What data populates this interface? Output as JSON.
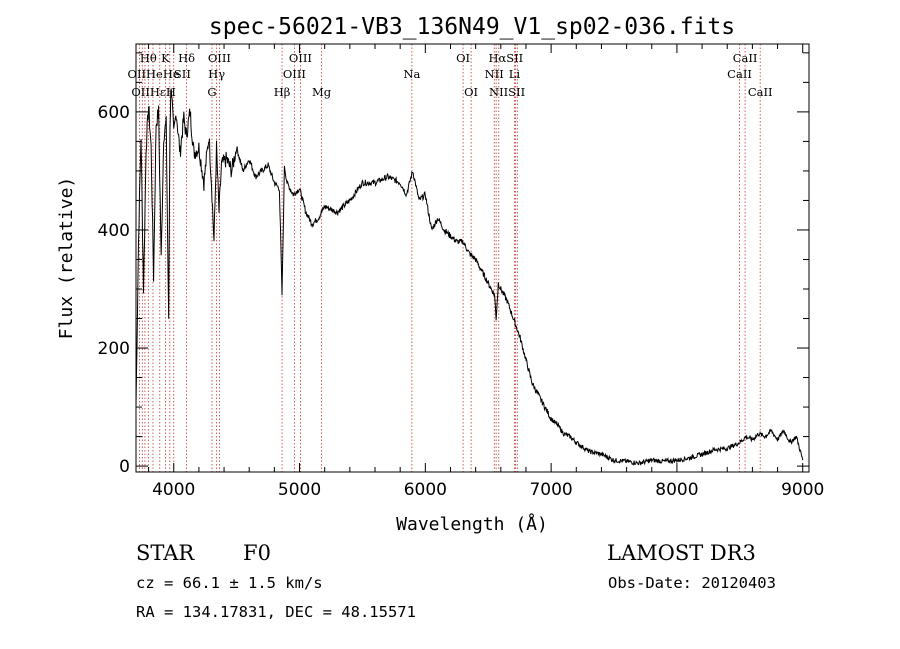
{
  "chart_data": {
    "type": "line",
    "title": "spec-56021-VB3_136N49_V1_sp02-036.fits",
    "xlabel": "Wavelength (Å)",
    "ylabel": "Flux (relative)",
    "xlim": [
      3700,
      9050
    ],
    "ylim": [
      -10,
      715
    ],
    "xticks": [
      4000,
      5000,
      6000,
      7000,
      8000,
      9000
    ],
    "yticks": [
      0,
      200,
      400,
      600
    ],
    "grid": false,
    "series": [
      {
        "name": "flux",
        "x": [
          3700,
          3720,
          3740,
          3760,
          3780,
          3800,
          3820,
          3840,
          3860,
          3880,
          3900,
          3920,
          3940,
          3960,
          3970,
          3980,
          4000,
          4020,
          4050,
          4080,
          4100,
          4130,
          4160,
          4200,
          4240,
          4280,
          4300,
          4320,
          4340,
          4360,
          4380,
          4420,
          4460,
          4500,
          4550,
          4600,
          4650,
          4700,
          4750,
          4800,
          4840,
          4861,
          4880,
          4900,
          4950,
          5000,
          5050,
          5100,
          5150,
          5200,
          5300,
          5400,
          5500,
          5600,
          5700,
          5800,
          5850,
          5900,
          5950,
          6000,
          6050,
          6100,
          6150,
          6200,
          6250,
          6300,
          6350,
          6400,
          6450,
          6500,
          6550,
          6563,
          6580,
          6600,
          6650,
          6700,
          6750,
          6800,
          6850,
          6900,
          6950,
          7000,
          7050,
          7100,
          7150,
          7200,
          7300,
          7400,
          7500,
          7600,
          7700,
          7800,
          7900,
          8000,
          8100,
          8200,
          8300,
          8400,
          8500,
          8550,
          8600,
          8650,
          8700,
          8750,
          8800,
          8850,
          8900,
          8950,
          9000
        ],
        "y": [
          100,
          380,
          560,
          300,
          540,
          610,
          540,
          320,
          580,
          600,
          350,
          560,
          580,
          240,
          580,
          650,
          560,
          600,
          530,
          590,
          560,
          600,
          530,
          540,
          480,
          560,
          480,
          380,
          540,
          430,
          510,
          520,
          500,
          540,
          500,
          520,
          490,
          500,
          510,
          480,
          470,
          290,
          510,
          480,
          460,
          470,
          430,
          410,
          420,
          440,
          430,
          450,
          480,
          480,
          490,
          480,
          460,
          500,
          450,
          460,
          400,
          420,
          400,
          390,
          380,
          380,
          360,
          350,
          330,
          310,
          290,
          250,
          310,
          300,
          280,
          250,
          220,
          180,
          140,
          120,
          100,
          80,
          70,
          55,
          50,
          40,
          25,
          20,
          10,
          8,
          5,
          10,
          8,
          10,
          14,
          20,
          28,
          30,
          40,
          50,
          45,
          55,
          50,
          60,
          45,
          60,
          40,
          50,
          10
        ]
      }
    ],
    "lines_vertical": [
      3727,
      3750,
      3771,
      3798,
      3835,
      3889,
      3934,
      3969,
      4000,
      4102,
      4304,
      4341,
      4363,
      4861,
      4959,
      5007,
      5175,
      5893,
      6300,
      6364,
      6548,
      6563,
      6584,
      6708,
      6717,
      6731,
      8498,
      8542,
      8662
    ],
    "line_labels": [
      {
        "text": "Hθ",
        "w": 3798,
        "row": 1
      },
      {
        "text": "K",
        "w": 3934,
        "row": 1
      },
      {
        "text": "Hδ",
        "w": 4102,
        "row": 1
      },
      {
        "text": "OIII",
        "w": 4363,
        "row": 1
      },
      {
        "text": "OIII",
        "w": 5007,
        "row": 1
      },
      {
        "text": "OI",
        "w": 6300,
        "row": 1
      },
      {
        "text": "HαSII",
        "w": 6640,
        "row": 1
      },
      {
        "text": "CaII",
        "w": 8542,
        "row": 1
      },
      {
        "text": "OIIHeHe",
        "w": 3840,
        "row": 2
      },
      {
        "text": "SII",
        "w": 4069,
        "row": 2
      },
      {
        "text": "Hγ",
        "w": 4341,
        "row": 2
      },
      {
        "text": "OIII",
        "w": 4959,
        "row": 2
      },
      {
        "text": "Na",
        "w": 5893,
        "row": 2
      },
      {
        "text": "NII",
        "w": 6548,
        "row": 2
      },
      {
        "text": "Li",
        "w": 6708,
        "row": 2
      },
      {
        "text": "CaII",
        "w": 8498,
        "row": 2
      },
      {
        "text": "OIIHεH",
        "w": 3840,
        "row": 3
      },
      {
        "text": "G",
        "w": 4304,
        "row": 3
      },
      {
        "text": "Hβ",
        "w": 4861,
        "row": 3
      },
      {
        "text": "Mg",
        "w": 5175,
        "row": 3
      },
      {
        "text": "OI",
        "w": 6364,
        "row": 3
      },
      {
        "text": "NIISII",
        "w": 6650,
        "row": 3
      },
      {
        "text": "CaII",
        "w": 8662,
        "row": 3
      }
    ]
  },
  "info": {
    "class": "STAR",
    "subclass": "F0",
    "survey": "LAMOST DR3",
    "cz": "cz = 66.1 ± 1.5 km/s",
    "obs_date": "Obs-Date: 20120403",
    "coords": "RA = 134.17831, DEC =  48.15571"
  }
}
